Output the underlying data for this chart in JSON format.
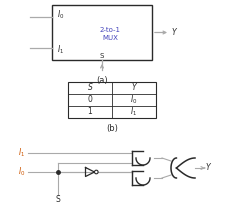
{
  "bg_color": "#ffffff",
  "line_color": "#aaaaaa",
  "dark_line": "#2a2a2a",
  "blue": "#4444bb",
  "orange": "#cc5500",
  "label_a": "(a)",
  "label_b": "(b)",
  "mux_label1": "2-to-1",
  "mux_label2": "MUX",
  "figsize": [
    2.26,
    2.23
  ],
  "dpi": 100
}
